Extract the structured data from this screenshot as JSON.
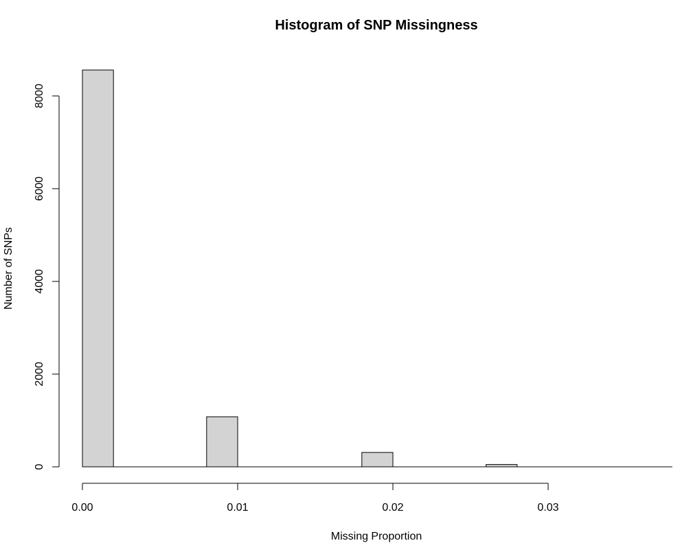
{
  "chart_data": {
    "type": "bar",
    "title": "Histogram of SNP Missingness",
    "xlabel": "Missing Proportion",
    "ylabel": "Number of SNPs",
    "bins": [
      {
        "x0": 0.0,
        "x1": 0.002,
        "count": 8560
      },
      {
        "x0": 0.002,
        "x1": 0.004,
        "count": 0
      },
      {
        "x0": 0.004,
        "x1": 0.006,
        "count": 0
      },
      {
        "x0": 0.006,
        "x1": 0.008,
        "count": 0
      },
      {
        "x0": 0.008,
        "x1": 0.01,
        "count": 1080
      },
      {
        "x0": 0.01,
        "x1": 0.012,
        "count": 0
      },
      {
        "x0": 0.012,
        "x1": 0.014,
        "count": 0
      },
      {
        "x0": 0.014,
        "x1": 0.016,
        "count": 0
      },
      {
        "x0": 0.016,
        "x1": 0.018,
        "count": 0
      },
      {
        "x0": 0.018,
        "x1": 0.02,
        "count": 310
      },
      {
        "x0": 0.02,
        "x1": 0.022,
        "count": 0
      },
      {
        "x0": 0.022,
        "x1": 0.024,
        "count": 0
      },
      {
        "x0": 0.024,
        "x1": 0.026,
        "count": 0
      },
      {
        "x0": 0.026,
        "x1": 0.028,
        "count": 50
      },
      {
        "x0": 0.028,
        "x1": 0.03,
        "count": 0
      },
      {
        "x0": 0.03,
        "x1": 0.032,
        "count": 0
      },
      {
        "x0": 0.032,
        "x1": 0.034,
        "count": 0
      },
      {
        "x0": 0.034,
        "x1": 0.036,
        "count": 0
      },
      {
        "x0": 0.036,
        "x1": 0.038,
        "count": 0
      }
    ],
    "xticks": [
      "0.00",
      "0.01",
      "0.02",
      "0.03"
    ],
    "yticks": [
      "0",
      "2000",
      "4000",
      "6000",
      "8000"
    ],
    "xlim": [
      0,
      0.038
    ],
    "ylim": [
      0,
      8560
    ],
    "bar_color": "#d3d3d3",
    "grid": false,
    "legend": false
  }
}
